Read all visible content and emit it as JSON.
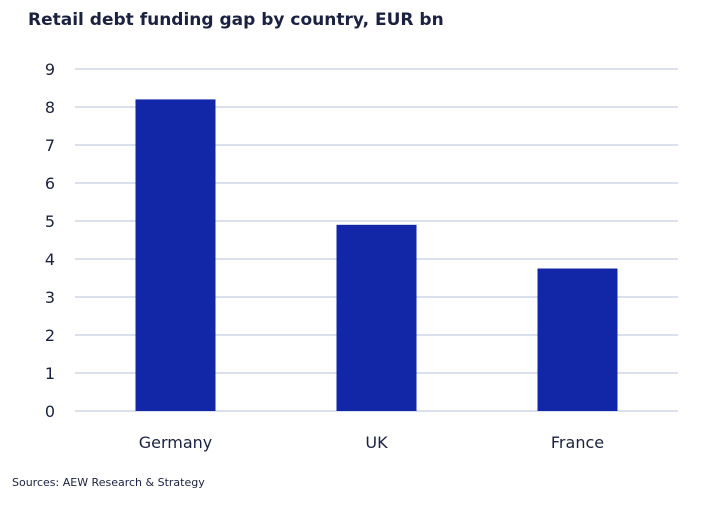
{
  "chart_data": {
    "type": "bar",
    "title": "Retail debt funding gap by country, EUR bn",
    "categories": [
      "Germany",
      "UK",
      "France"
    ],
    "values": [
      8.2,
      4.9,
      3.75
    ],
    "xlabel": "",
    "ylabel": "",
    "ylim": [
      0,
      9
    ],
    "yticks": [
      "0",
      "1",
      "2",
      "3",
      "4",
      "5",
      "6",
      "7",
      "8",
      "9"
    ],
    "grid": true,
    "legend": "none",
    "colors": {
      "bar": "#1226a8",
      "grid": "#c5cde3",
      "text": "#1b2140"
    }
  },
  "source": "Sources: AEW Research & Strategy"
}
